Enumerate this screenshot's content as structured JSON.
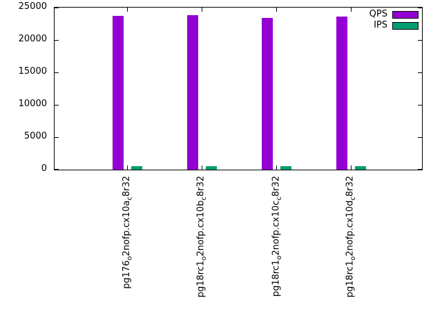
{
  "chart_data": {
    "type": "bar",
    "title": "",
    "xlabel": "",
    "ylabel": "",
    "categories_plain": [
      "pg176_o2nofp.cx10a_c8r32",
      "pg18rc1_o2nofp.cx10b_c8r32",
      "pg18rc1_o2nofp.cx10c_c8r32",
      "pg18rc1_o2nofp.cx10d_c8r32"
    ],
    "categories_segments": [
      [
        {
          "t": "pg176"
        },
        {
          "t": "o",
          "sub": true
        },
        {
          "t": "2nofp.cx10a"
        },
        {
          "t": "c",
          "sub": true
        },
        {
          "t": "8r32"
        }
      ],
      [
        {
          "t": "pg18rc1"
        },
        {
          "t": "o",
          "sub": true
        },
        {
          "t": "2nofp.cx10b"
        },
        {
          "t": "c",
          "sub": true
        },
        {
          "t": "8r32"
        }
      ],
      [
        {
          "t": "pg18rc1"
        },
        {
          "t": "o",
          "sub": true
        },
        {
          "t": "2nofp.cx10c"
        },
        {
          "t": "c",
          "sub": true
        },
        {
          "t": "8r32"
        }
      ],
      [
        {
          "t": "pg18rc1"
        },
        {
          "t": "o",
          "sub": true
        },
        {
          "t": "2nofp.cx10d"
        },
        {
          "t": "c",
          "sub": true
        },
        {
          "t": "8r32"
        }
      ]
    ],
    "series": [
      {
        "name": "QPS",
        "color": "#9400d3",
        "values": [
          23700,
          23850,
          23450,
          23650
        ]
      },
      {
        "name": "IPS",
        "color": "#009e73",
        "values": [
          520,
          530,
          540,
          530
        ]
      }
    ],
    "ylim": [
      0,
      25000
    ],
    "yticks": [
      0,
      5000,
      10000,
      15000,
      20000,
      25000
    ],
    "legend_position": "top-right-inside",
    "grid": false
  },
  "colors": {
    "axis": "#000000",
    "background": "#ffffff"
  }
}
